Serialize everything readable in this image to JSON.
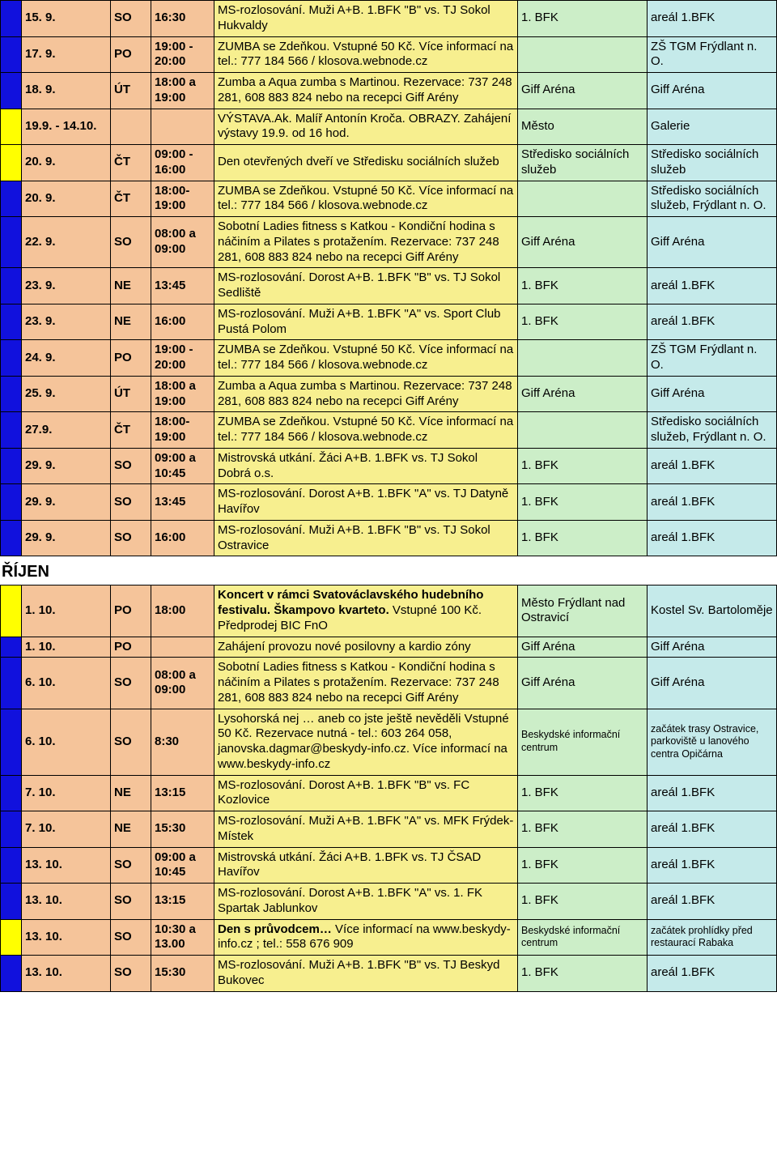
{
  "colors": {
    "c_date": "#f5c49a",
    "c_desc": "#f7ef8f",
    "c_org": "#cceec8",
    "c_place": "#c5eaea",
    "marker_blue": "#1111dd",
    "marker_yellow": "#ffff00"
  },
  "sections": [
    {
      "heading": null,
      "rows": [
        {
          "marker": "blue",
          "date": "15. 9.",
          "day": "SO",
          "time": "16:30",
          "desc": "MS-rozlosování. Muži A+B. 1.BFK \"B\" vs. TJ Sokol Hukvaldy",
          "org": "1. BFK",
          "place": "areál 1.BFK",
          "bold": false
        },
        {
          "marker": "blue",
          "date": "17. 9.",
          "day": "PO",
          "time": "19:00 - 20:00",
          "desc": "ZUMBA se Zdeňkou. Vstupné 50 Kč. Více informací na tel.: 777 184 566 / klosova.webnode.cz",
          "org": "",
          "place": "ZŠ TGM Frýdlant n. O.",
          "bold": false
        },
        {
          "marker": "blue",
          "date": "18. 9.",
          "day": "ÚT",
          "time": "18:00 a 19:00",
          "desc": "Zumba a Aqua zumba s Martinou. Rezervace: 737 248 281, 608 883 824 nebo na recepci Giff Arény",
          "org": "Giff Aréna",
          "place": "Giff Aréna",
          "bold": false
        },
        {
          "marker": "yellow",
          "date": "19.9. - 14.10.",
          "day": "",
          "time": "",
          "desc": "VÝSTAVA.Ak. Malíř Antonín Kroča. OBRAZY. Zahájení výstavy 19.9. od 16 hod.",
          "org": "Město",
          "place": "Galerie",
          "bold": false
        },
        {
          "marker": "yellow",
          "date": "20. 9.",
          "day": "ČT",
          "time": "09:00 - 16:00",
          "desc": "Den otevřených dveří ve Středisku sociálních služeb",
          "org": "Středisko sociálních služeb",
          "place": "Středisko sociálních služeb",
          "bold": false
        },
        {
          "marker": "blue",
          "date": "20. 9.",
          "day": "ČT",
          "time": "18:00- 19:00",
          "desc": "ZUMBA se Zdeňkou. Vstupné 50 Kč. Více informací na tel.: 777 184 566 / klosova.webnode.cz",
          "org": "",
          "place": "Středisko sociálních služeb, Frýdlant n. O.",
          "bold": false
        },
        {
          "marker": "blue",
          "date": "22. 9.",
          "day": "SO",
          "time": "08:00 a 09:00",
          "desc": "Sobotní Ladies fitness s Katkou - Kondiční hodina s náčiním a Pilates s protažením. Rezervace: 737 248 281, 608 883 824 nebo na recepci Giff Arény",
          "org": "Giff Aréna",
          "place": "Giff Aréna",
          "bold": false
        },
        {
          "marker": "blue",
          "date": "23. 9.",
          "day": "NE",
          "time": "13:45",
          "desc": "MS-rozlosování. Dorost A+B. 1.BFK \"B\" vs. TJ Sokol Sedliště",
          "org": "1. BFK",
          "place": "areál 1.BFK",
          "bold": false
        },
        {
          "marker": "blue",
          "date": "23. 9.",
          "day": "NE",
          "time": "16:00",
          "desc": "MS-rozlosování. Muži A+B. 1.BFK \"A\" vs. Sport Club Pustá Polom",
          "org": "1. BFK",
          "place": "areál 1.BFK",
          "bold": false
        },
        {
          "marker": "blue",
          "date": "24. 9.",
          "day": "PO",
          "time": "19:00 - 20:00",
          "desc": "ZUMBA se Zdeňkou. Vstupné 50 Kč. Více informací na tel.: 777 184 566 / klosova.webnode.cz",
          "org": "",
          "place": "ZŠ TGM Frýdlant n. O.",
          "bold": false
        },
        {
          "marker": "blue",
          "date": "25. 9.",
          "day": "ÚT",
          "time": "18:00 a 19:00",
          "desc": "Zumba a Aqua zumba s Martinou. Rezervace: 737 248 281, 608 883 824 nebo na recepci Giff Arény",
          "org": "Giff Aréna",
          "place": "Giff Aréna",
          "bold": false
        },
        {
          "marker": "blue",
          "date": "27.9.",
          "day": "ČT",
          "time": "18:00- 19:00",
          "desc": "ZUMBA se Zdeňkou. Vstupné 50 Kč. Více informací na tel.: 777 184 566 / klosova.webnode.cz",
          "org": "",
          "place": "Středisko sociálních služeb, Frýdlant n. O.",
          "bold": false
        },
        {
          "marker": "blue",
          "date": "29. 9.",
          "day": "SO",
          "time": "09:00 a 10:45",
          "desc": "Mistrovská utkání. Žáci A+B. 1.BFK vs. TJ Sokol Dobrá o.s.",
          "org": "1. BFK",
          "place": "areál 1.BFK",
          "bold": false
        },
        {
          "marker": "blue",
          "date": "29. 9.",
          "day": "SO",
          "time": "13:45",
          "desc": "MS-rozlosování. Dorost A+B. 1.BFK \"A\" vs. TJ Datyně Havířov",
          "org": "1. BFK",
          "place": "areál 1.BFK",
          "bold": false
        },
        {
          "marker": "blue",
          "date": "29. 9.",
          "day": "SO",
          "time": "16:00",
          "desc": "MS-rozlosování. Muži A+B. 1.BFK \"B\" vs. TJ Sokol Ostravice",
          "org": "1. BFK",
          "place": "areál 1.BFK",
          "bold": false
        }
      ]
    },
    {
      "heading": "ŘÍJEN",
      "rows": [
        {
          "marker": "yellow",
          "date": "1. 10.",
          "day": "PO",
          "time": "18:00",
          "desc_parts": [
            {
              "t": "Koncert v rámci Svatováclavského hudebního festivalu. Škampovo kvarteto.",
              "b": true
            },
            {
              "t": " Vstupné 100 Kč. Předprodej BIC FnO",
              "b": false
            }
          ],
          "org": "Město Frýdlant nad Ostravicí",
          "place": "Kostel Sv. Bartoloměje"
        },
        {
          "marker": "blue",
          "date": "1. 10.",
          "day": "PO",
          "time": "",
          "desc": "Zahájení provozu nové posilovny a kardio zóny",
          "org": "Giff Aréna",
          "place": "Giff Aréna",
          "bold": false
        },
        {
          "marker": "blue",
          "date": "6. 10.",
          "day": "SO",
          "time": "08:00 a 09:00",
          "desc": "Sobotní Ladies fitness s Katkou - Kondiční hodina s náčiním a Pilates s protažením. Rezervace: 737 248 281, 608 883 824 nebo na recepci Giff Arény",
          "org": "Giff Aréna",
          "place": "Giff Aréna",
          "bold": false
        },
        {
          "marker": "blue",
          "date": "6. 10.",
          "day": "SO",
          "time": "8:30",
          "desc": "Lysohorská nej … aneb co jste ještě nevěděli Vstupné 50 Kč. Rezervace nutná - tel.: 603 264 058, janovska.dagmar@beskydy-info.cz. Více informací na www.beskydy-info.cz",
          "org": "Beskydské informační centrum",
          "place": "začátek trasy Ostravice, parkoviště u lanového centra Opičárna",
          "bold": false,
          "small": true
        },
        {
          "marker": "blue",
          "date": "7. 10.",
          "day": "NE",
          "time": "13:15",
          "desc": "MS-rozlosování. Dorost A+B. 1.BFK \"B\" vs. FC Kozlovice",
          "org": "1. BFK",
          "place": "areál 1.BFK",
          "bold": false
        },
        {
          "marker": "blue",
          "date": "7. 10.",
          "day": "NE",
          "time": "15:30",
          "desc": "MS-rozlosování. Muži A+B. 1.BFK \"A\" vs. MFK Frýdek-Místek",
          "org": "1. BFK",
          "place": "areál 1.BFK",
          "bold": false
        },
        {
          "marker": "blue",
          "date": "13. 10.",
          "day": "SO",
          "time": "09:00 a 10:45",
          "desc": "Mistrovská utkání. Žáci A+B. 1.BFK vs. TJ ČSAD Havířov",
          "org": "1. BFK",
          "place": "areál 1.BFK",
          "bold": false
        },
        {
          "marker": "blue",
          "date": "13. 10.",
          "day": "SO",
          "time": "13:15",
          "desc": "MS-rozlosování. Dorost A+B. 1.BFK \"A\" vs. 1. FK Spartak Jablunkov",
          "org": "1. BFK",
          "place": "areál 1.BFK",
          "bold": false
        },
        {
          "marker": "yellow",
          "date": "13. 10.",
          "day": "SO",
          "time": "10:30 a 13.00",
          "desc_parts": [
            {
              "t": "Den s průvodcem…",
              "b": true
            },
            {
              "t": " Více informací na www.beskydy-info.cz ; tel.: 558 676 909",
              "b": false
            }
          ],
          "org": "Beskydské informační centrum",
          "place": "začátek prohlídky před restaurací Rabaka",
          "small": true
        },
        {
          "marker": "blue",
          "date": "13. 10.",
          "day": "SO",
          "time": "15:30",
          "desc": "MS-rozlosování. Muži A+B. 1.BFK \"B\" vs. TJ Beskyd Bukovec",
          "org": "1. BFK",
          "place": "areál 1.BFK",
          "bold": false
        }
      ]
    }
  ]
}
